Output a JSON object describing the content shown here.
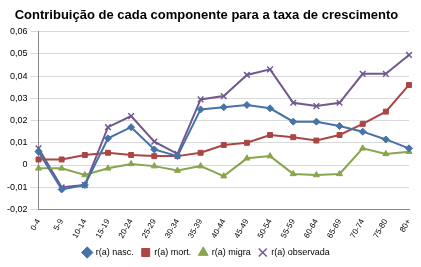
{
  "chart_data": {
    "type": "line",
    "title": "Contribuição de cada componente para a taxa de crescimento",
    "categories": [
      "0-4",
      "5-9",
      "10-14",
      "15-19",
      "20-24",
      "25-29",
      "30-34",
      "35-39",
      "40-44",
      "45-49",
      "50-54",
      "55-59",
      "60-64",
      "65-69",
      "70-74",
      "75-80",
      "80+"
    ],
    "series": [
      {
        "name": "r(a) nasc.",
        "color": "#4572A7",
        "marker": "diamond",
        "values": [
          0.006,
          -0.011,
          -0.009,
          0.012,
          0.017,
          0.007,
          0.004,
          0.025,
          0.026,
          0.027,
          0.0255,
          0.0195,
          0.0195,
          0.0175,
          0.015,
          0.0115,
          0.0075
        ]
      },
      {
        "name": "r(a) mort.",
        "color": "#AA4643",
        "marker": "square",
        "values": [
          0.0025,
          0.0025,
          0.0045,
          0.0055,
          0.0045,
          0.004,
          0.004,
          0.0055,
          0.009,
          0.01,
          0.0135,
          0.0125,
          0.011,
          0.0135,
          0.0185,
          0.024,
          0.036
        ]
      },
      {
        "name": "r(a) migra",
        "color": "#89A54E",
        "marker": "triangle",
        "values": [
          -0.0015,
          -0.0015,
          -0.0045,
          -0.0015,
          0.0005,
          -0.0005,
          -0.0025,
          -0.0005,
          -0.005,
          0.003,
          0.004,
          -0.004,
          -0.0045,
          -0.004,
          0.0075,
          0.005,
          0.006
        ]
      },
      {
        "name": "r(a) observada",
        "color": "#71588F",
        "marker": "cross",
        "values": [
          0.0075,
          -0.01,
          -0.009,
          0.017,
          0.022,
          0.0105,
          0.005,
          0.0295,
          0.031,
          0.0405,
          0.043,
          0.028,
          0.0265,
          0.028,
          0.041,
          0.041,
          0.0495
        ]
      }
    ],
    "ylim": [
      -0.02,
      0.06
    ],
    "yticks": [
      {
        "value": -0.02,
        "label": "-0,02"
      },
      {
        "value": -0.01,
        "label": "-0,01"
      },
      0,
      {
        "value": 0.01,
        "label": "0,01"
      },
      {
        "value": 0.02,
        "label": "0,02"
      },
      {
        "value": 0.03,
        "label": "0,03"
      },
      {
        "value": 0.04,
        "label": "0,04"
      },
      {
        "value": 0.05,
        "label": "0,05"
      },
      {
        "value": 0.06,
        "label": "0,06"
      }
    ],
    "grid": true,
    "legend": "bottom"
  }
}
